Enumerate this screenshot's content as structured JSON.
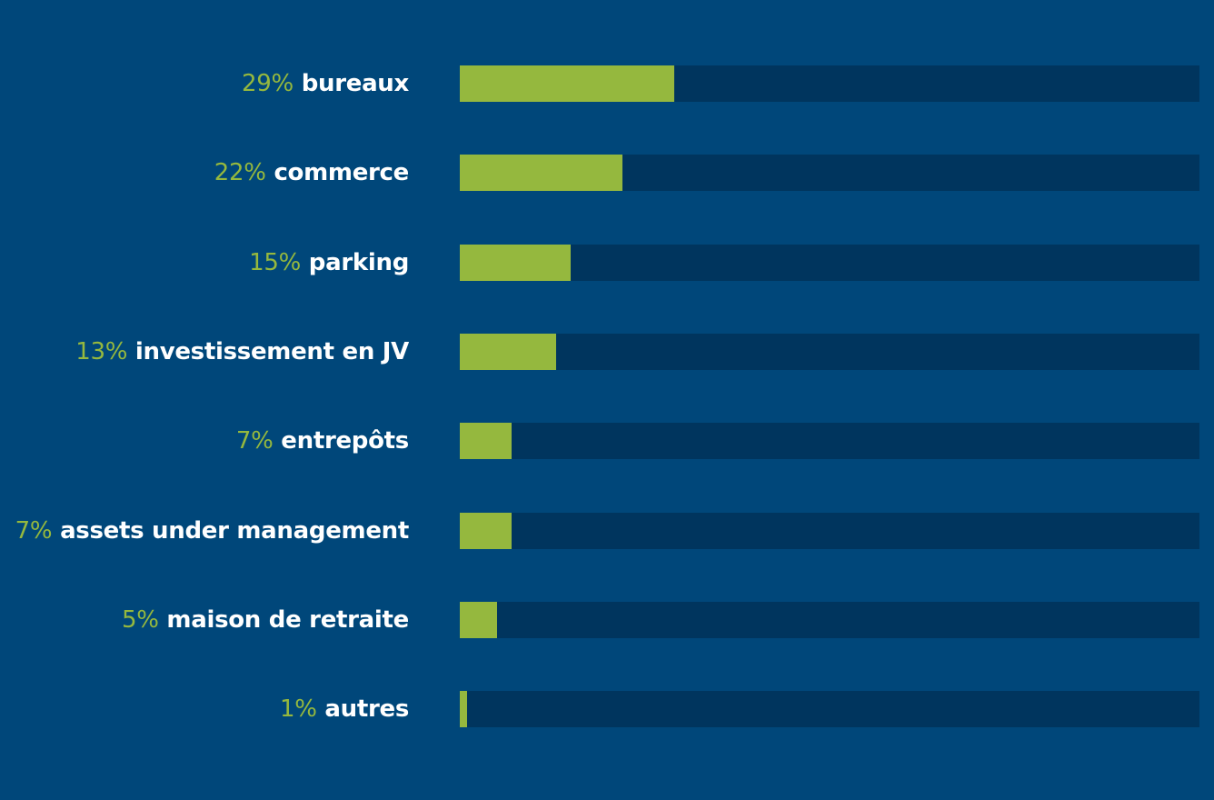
{
  "colors": {
    "background": "#00477a",
    "track": "#00355e",
    "fill": "#95b83e",
    "percent_text": "#95b83e",
    "label_text": "#ffffff"
  },
  "chart_data": {
    "type": "bar",
    "orientation": "horizontal",
    "unit": "%",
    "xlim": [
      0,
      100
    ],
    "categories": [
      "bureaux",
      "commerce",
      "parking",
      "investissement en JV",
      "entrepôts",
      "assets under management",
      "maison de retraite",
      "autres"
    ],
    "values": [
      29,
      22,
      15,
      13,
      7,
      7,
      5,
      1
    ],
    "value_labels": [
      "29%",
      "22%",
      "15%",
      "13%",
      "7%",
      "7%",
      "5%",
      "1%"
    ]
  }
}
